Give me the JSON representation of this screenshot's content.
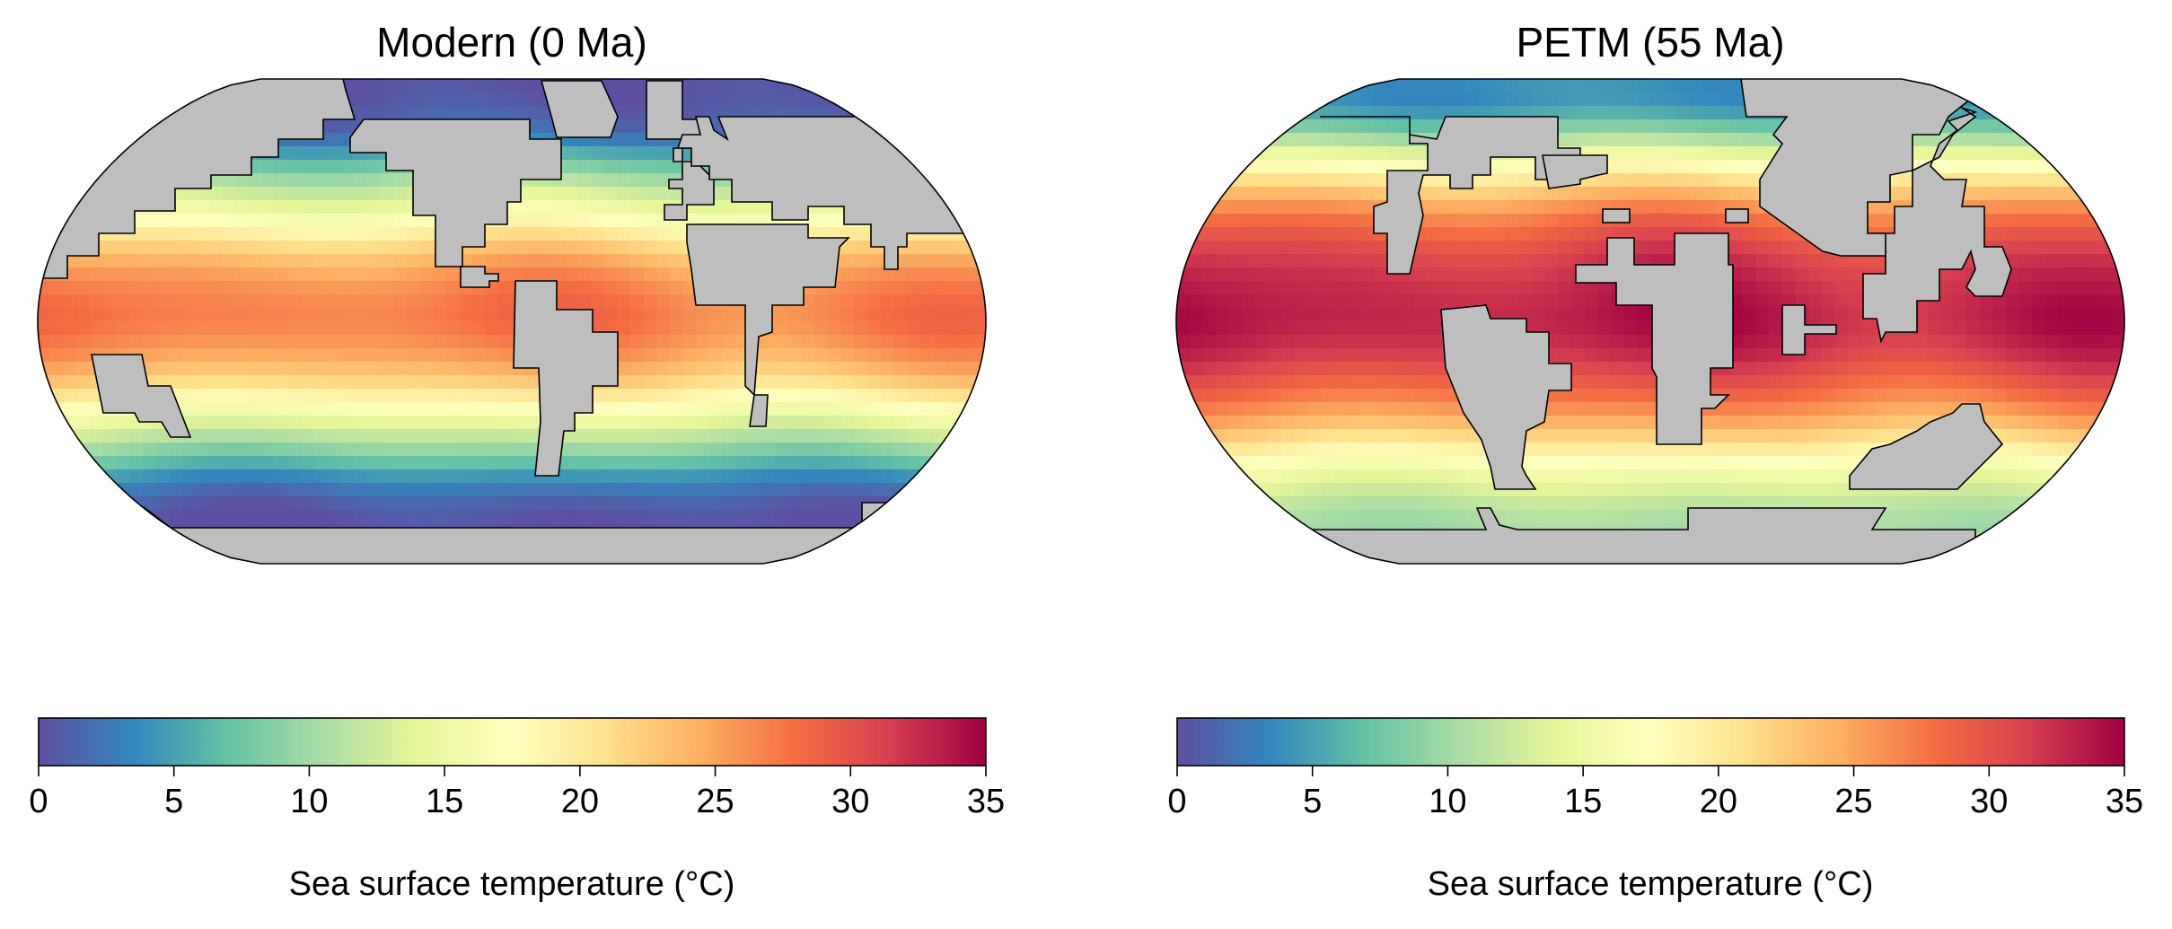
{
  "figure": {
    "panels": [
      {
        "id": "modern",
        "title": "Modern (0 Ma)",
        "colorbar": {
          "label": "Sea surface temperature (°C)",
          "min": 0,
          "max": 35,
          "ticks": [
            "0",
            "5",
            "10",
            "15",
            "20",
            "25",
            "30",
            "35"
          ]
        },
        "sst_profile": {
          "lat": [
            90,
            80,
            70,
            60,
            50,
            40,
            30,
            20,
            10,
            0,
            -10,
            -20,
            -30,
            -40,
            -50,
            -60,
            -70,
            -80,
            -90
          ],
          "temp": [
            0,
            0.5,
            2,
            7,
            12,
            16,
            21,
            25,
            27,
            27.5,
            26,
            23,
            18,
            13,
            8,
            3,
            0.5,
            0,
            0
          ]
        }
      },
      {
        "id": "petm",
        "title": "PETM (55 Ma)",
        "colorbar": {
          "label": "Sea surface temperature (°C)",
          "min": 0,
          "max": 35,
          "ticks": [
            "0",
            "5",
            "10",
            "15",
            "20",
            "25",
            "30",
            "35"
          ]
        },
        "sst_profile": {
          "lat": [
            90,
            80,
            70,
            60,
            50,
            40,
            30,
            20,
            10,
            0,
            -10,
            -20,
            -30,
            -40,
            -50,
            -60,
            -70,
            -80,
            -90
          ],
          "temp": [
            4,
            4,
            9,
            16,
            22,
            27,
            30,
            32,
            33,
            33.5,
            32.5,
            30,
            27,
            23,
            18,
            14,
            11,
            10,
            10
          ]
        }
      }
    ],
    "colormap": {
      "name": "Spectral_r",
      "colors": [
        "#5e4fa2",
        "#3288bd",
        "#66c2a5",
        "#abdda4",
        "#e6f598",
        "#ffffbf",
        "#fee08b",
        "#fdae61",
        "#f46d43",
        "#d53e4f",
        "#9e0142"
      ]
    },
    "land_color": "#bebebe",
    "coastline_color": "#000000"
  }
}
